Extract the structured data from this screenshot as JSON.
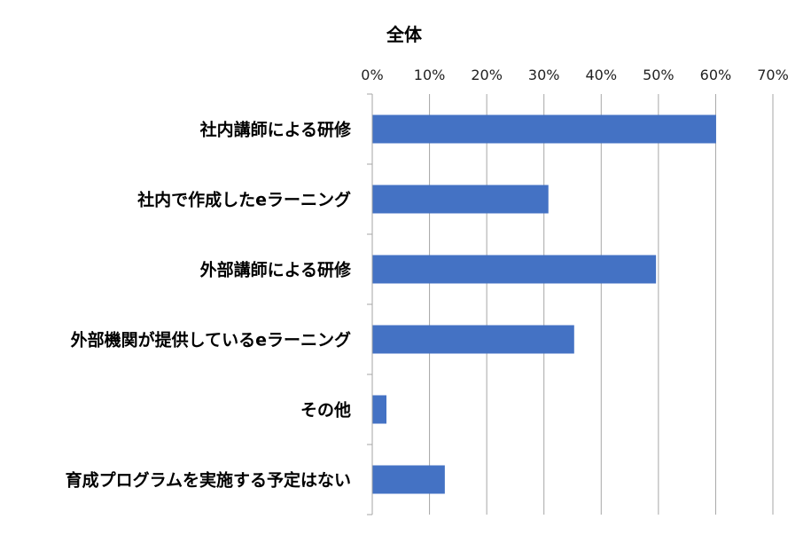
{
  "chart_data": {
    "type": "bar",
    "orientation": "horizontal",
    "title": "全体",
    "categories": [
      "社内講師による研修",
      "社内で作成したeラーニング",
      "外部講師による研修",
      "外部機関が提供しているeラーニング",
      "その他",
      "育成プログラムを実施する予定はない"
    ],
    "values": [
      60.0,
      30.7,
      49.5,
      35.2,
      2.4,
      12.6
    ],
    "xlim": [
      0,
      70
    ],
    "xticks": [
      0,
      10,
      20,
      30,
      40,
      50,
      60,
      70
    ],
    "tick_labels": [
      "0%",
      "10%",
      "20%",
      "30%",
      "40%",
      "50%",
      "60%",
      "70%"
    ],
    "axis_position": "top",
    "grid": true,
    "legend": "none",
    "bar_color": "#4472C4",
    "grid_color": "#A6A6A6"
  }
}
